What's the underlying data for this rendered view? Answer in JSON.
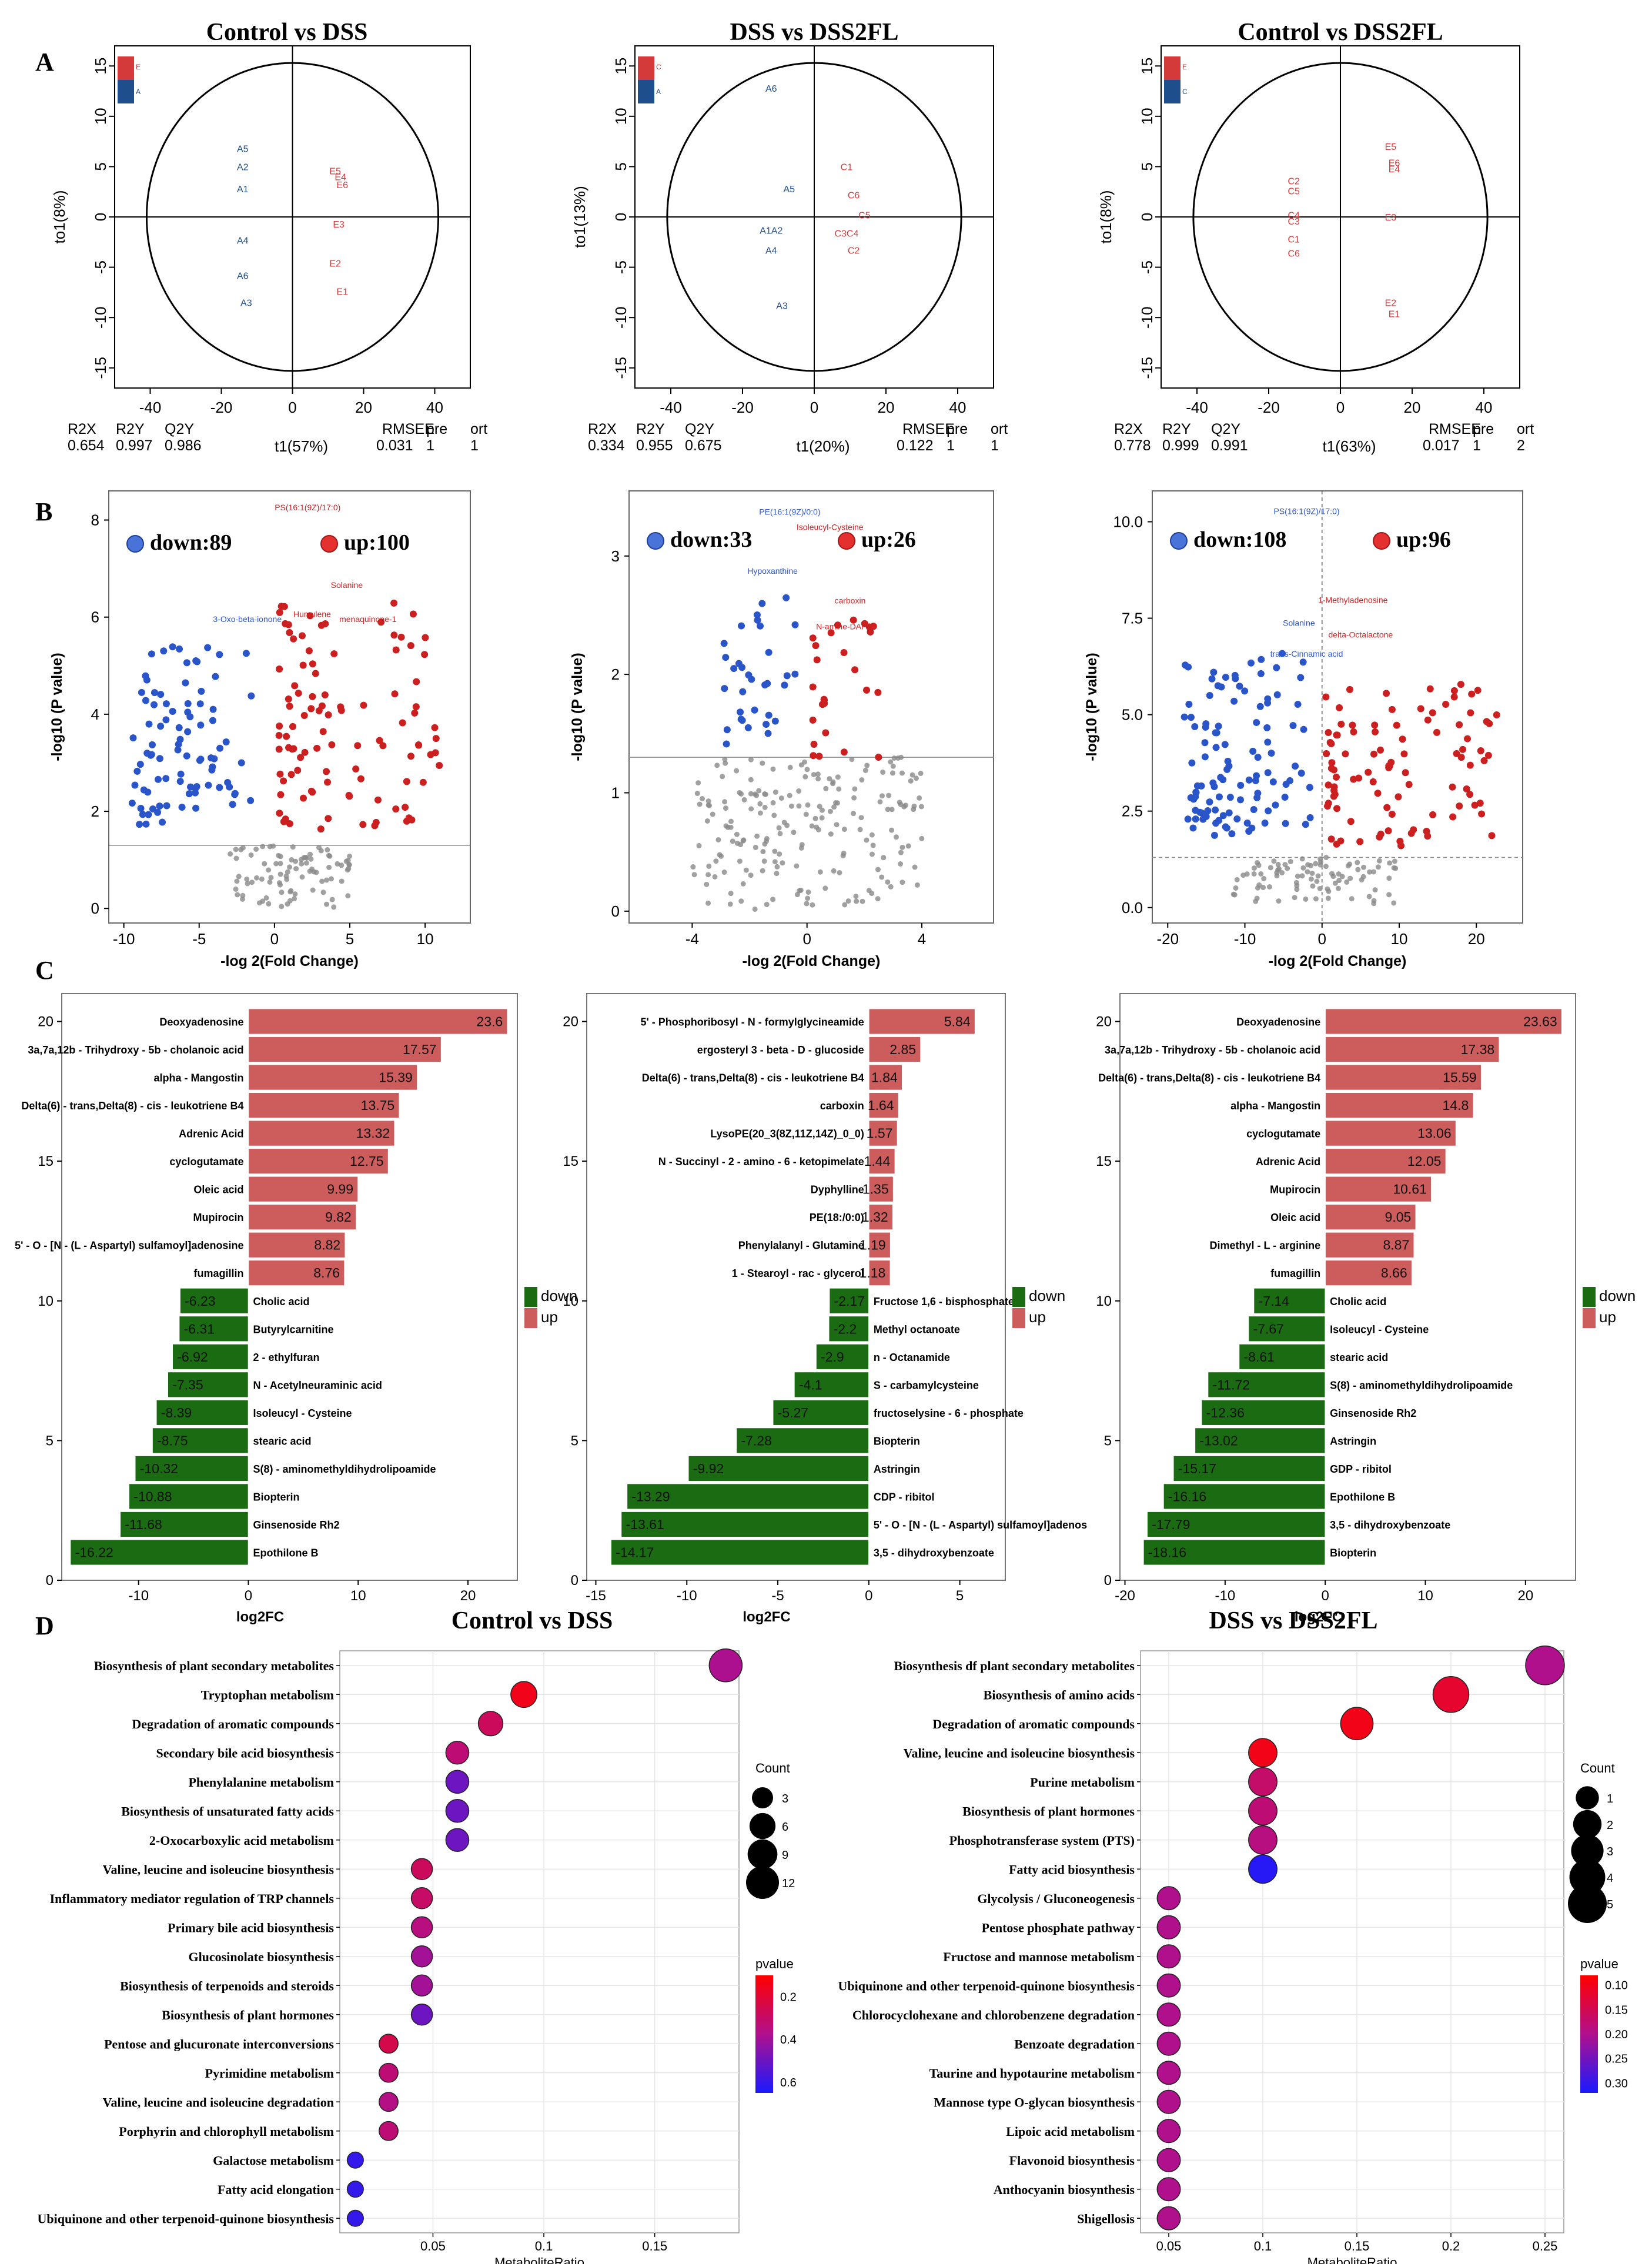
{
  "panel_labels": [
    "A",
    "B",
    "C",
    "D"
  ],
  "chart_data": [
    {
      "type": "scatter",
      "subtype": "opls-da",
      "panel": "A",
      "title": "Control vs DSS",
      "xlabel": "t1(57%)",
      "ylabel": "to1(8%)",
      "xlim": [
        -50,
        50
      ],
      "ylim": [
        -17,
        17
      ],
      "xticks": [
        -40,
        -20,
        0,
        20,
        40
      ],
      "yticks": [
        -15,
        -10,
        -5,
        0,
        5,
        10,
        15
      ],
      "points": [
        {
          "label": "A5",
          "x": -14,
          "y": 6.8,
          "group": "A"
        },
        {
          "label": "A2",
          "x": -14,
          "y": 5.0,
          "group": "A"
        },
        {
          "label": "A1",
          "x": -14,
          "y": 2.8,
          "group": "A"
        },
        {
          "label": "A4",
          "x": -14,
          "y": -2.3,
          "group": "A"
        },
        {
          "label": "A6",
          "x": -14,
          "y": -5.8,
          "group": "A"
        },
        {
          "label": "A3",
          "x": -13,
          "y": -8.5,
          "group": "A"
        },
        {
          "label": "E5",
          "x": 12,
          "y": 4.6,
          "group": "E"
        },
        {
          "label": "E4",
          "x": 13.5,
          "y": 4.0,
          "group": "E"
        },
        {
          "label": "E6",
          "x": 14,
          "y": 3.2,
          "group": "E"
        },
        {
          "label": "E3",
          "x": 13,
          "y": -0.7,
          "group": "E"
        },
        {
          "label": "E2",
          "x": 12,
          "y": -4.6,
          "group": "E"
        },
        {
          "label": "E1",
          "x": 14,
          "y": -7.4,
          "group": "E"
        }
      ],
      "legend": [
        "E",
        "A"
      ],
      "stats": {
        "headers": [
          "R2X",
          "R2Y",
          "Q2Y",
          "RMSEE",
          "pre",
          "ort"
        ],
        "values": [
          "0.654",
          "0.997",
          "0.986",
          "0.031",
          "1",
          "1"
        ]
      }
    },
    {
      "type": "scatter",
      "subtype": "opls-da",
      "panel": "A",
      "title": "DSS vs DSS2FL",
      "xlabel": "t1(20%)",
      "ylabel": "to1(13%)",
      "xlim": [
        -50,
        50
      ],
      "ylim": [
        -17,
        17
      ],
      "xticks": [
        -40,
        -20,
        0,
        20,
        40
      ],
      "yticks": [
        -15,
        -10,
        -5,
        0,
        5,
        10,
        15
      ],
      "points": [
        {
          "label": "A6",
          "x": -12,
          "y": 12.8,
          "group": "A"
        },
        {
          "label": "A5",
          "x": -7,
          "y": 2.8,
          "group": "A"
        },
        {
          "label": "A1A2",
          "x": -12,
          "y": -1.3,
          "group": "A"
        },
        {
          "label": "A4",
          "x": -12,
          "y": -3.3,
          "group": "A"
        },
        {
          "label": "A3",
          "x": -9,
          "y": -8.8,
          "group": "A"
        },
        {
          "label": "C1",
          "x": 9,
          "y": 5.0,
          "group": "C"
        },
        {
          "label": "C6",
          "x": 11,
          "y": 2.2,
          "group": "C"
        },
        {
          "label": "C5",
          "x": 14,
          "y": 0.2,
          "group": "C"
        },
        {
          "label": "C3C4",
          "x": 9,
          "y": -1.6,
          "group": "C"
        },
        {
          "label": "C2",
          "x": 11,
          "y": -3.3,
          "group": "C"
        }
      ],
      "legend": [
        "C",
        "A"
      ],
      "stats": {
        "headers": [
          "R2X",
          "R2Y",
          "Q2Y",
          "RMSEE",
          "pre",
          "ort"
        ],
        "values": [
          "0.334",
          "0.955",
          "0.675",
          "0.122",
          "1",
          "1"
        ]
      }
    },
    {
      "type": "scatter",
      "subtype": "opls-da",
      "panel": "A",
      "title": "Control vs DSS2FL",
      "xlabel": "t1(63%)",
      "ylabel": "to1(8%)",
      "xlim": [
        -50,
        50
      ],
      "ylim": [
        -17,
        17
      ],
      "xticks": [
        -40,
        -20,
        0,
        20,
        40
      ],
      "yticks": [
        -15,
        -10,
        -5,
        0,
        5,
        10,
        15
      ],
      "points": [
        {
          "label": "C2",
          "x": -13,
          "y": 3.6,
          "group": "C"
        },
        {
          "label": "C5",
          "x": -13,
          "y": 2.6,
          "group": "C"
        },
        {
          "label": "C4",
          "x": -13,
          "y": 0.2,
          "group": "C"
        },
        {
          "label": "C3",
          "x": -13,
          "y": -0.4,
          "group": "C"
        },
        {
          "label": "C1",
          "x": -13,
          "y": -2.2,
          "group": "C"
        },
        {
          "label": "C6",
          "x": -13,
          "y": -3.6,
          "group": "C"
        },
        {
          "label": "E5",
          "x": 14,
          "y": 7.0,
          "group": "E"
        },
        {
          "label": "E6",
          "x": 15,
          "y": 5.4,
          "group": "E"
        },
        {
          "label": "E4",
          "x": 15,
          "y": 4.8,
          "group": "E"
        },
        {
          "label": "E3",
          "x": 14,
          "y": 0.0,
          "group": "E"
        },
        {
          "label": "E2",
          "x": 14,
          "y": -8.5,
          "group": "E"
        },
        {
          "label": "E1",
          "x": 15,
          "y": -9.6,
          "group": "E"
        }
      ],
      "legend": [
        "E",
        "C"
      ],
      "stats": {
        "headers": [
          "R2X",
          "R2Y",
          "Q2Y",
          "RMSEE",
          "pre",
          "ort"
        ],
        "values": [
          "0.778",
          "0.999",
          "0.991",
          "0.017",
          "1",
          "2"
        ]
      }
    },
    {
      "type": "scatter",
      "subtype": "volcano",
      "panel": "B",
      "xlabel": "-log 2(Fold Change)",
      "ylabel": "-log10 (P value)",
      "xlim": [
        -11,
        13
      ],
      "ylim": [
        -0.3,
        8.6
      ],
      "xticks": [
        -10,
        -5,
        0,
        5,
        10
      ],
      "yticks": [
        0,
        2,
        4,
        6,
        8
      ],
      "threshold_y": 1.3,
      "threshold_x": null,
      "down_label": "down:89",
      "up_label": "up:100",
      "annotations": [
        {
          "text": "PS(16:1(9Z)/17:0)",
          "x": 2.2,
          "y": 8.2,
          "color": "up"
        },
        {
          "text": "Solanine",
          "x": 4.8,
          "y": 6.6,
          "color": "up"
        },
        {
          "text": "menaquinone-1",
          "x": 6.2,
          "y": 5.9,
          "color": "up"
        },
        {
          "text": "Humulene",
          "x": 2.5,
          "y": 6.0,
          "color": "up"
        },
        {
          "text": "3-Oxo-beta-ionone",
          "x": -1.8,
          "y": 5.9,
          "color": "down"
        }
      ],
      "counts": {
        "down": 89,
        "up": 100,
        "ns": 90
      }
    },
    {
      "type": "scatter",
      "subtype": "volcano",
      "panel": "B",
      "xlabel": "-log 2(Fold Change)",
      "ylabel": "-log10 (P value)",
      "xlim": [
        -6.2,
        6.5
      ],
      "ylim": [
        -0.1,
        3.55
      ],
      "xticks": [
        -4,
        0,
        4
      ],
      "yticks": [
        0,
        1,
        2,
        3
      ],
      "threshold_y": 1.3,
      "threshold_x": null,
      "down_label": "down:33",
      "up_label": "up:26",
      "annotations": [
        {
          "text": "PE(16:1(9Z)/0:0)",
          "x": -0.6,
          "y": 3.35,
          "color": "down"
        },
        {
          "text": "Isoleucyl-Cysteine",
          "x": 0.8,
          "y": 3.22,
          "color": "up"
        },
        {
          "text": "Hypoxanthine",
          "x": -1.2,
          "y": 2.85,
          "color": "down"
        },
        {
          "text": "carboxin",
          "x": 1.5,
          "y": 2.6,
          "color": "up"
        },
        {
          "text": "N-amine-DAP",
          "x": 1.2,
          "y": 2.38,
          "color": "up"
        }
      ],
      "counts": {
        "down": 33,
        "up": 26,
        "ns": 200
      }
    },
    {
      "type": "scatter",
      "subtype": "volcano",
      "panel": "B",
      "xlabel": "-log 2(Fold Change)",
      "ylabel": "-log10 (P value)",
      "xlim": [
        -22,
        26
      ],
      "ylim": [
        -0.4,
        10.8
      ],
      "xticks": [
        -20,
        -10,
        0,
        10,
        20
      ],
      "yticks": [
        0.0,
        2.5,
        5.0,
        7.5,
        10.0
      ],
      "threshold_y": 1.3,
      "threshold_x": 0,
      "down_label": "down:108",
      "up_label": "up:96",
      "annotations": [
        {
          "text": "PS(16:1(9Z)/17:0)",
          "x": -2,
          "y": 10.2,
          "color": "down"
        },
        {
          "text": "1-Methyladenosine",
          "x": 4,
          "y": 7.9,
          "color": "up"
        },
        {
          "text": "Solanine",
          "x": -3,
          "y": 7.3,
          "color": "down"
        },
        {
          "text": "delta-Octalactone",
          "x": 5,
          "y": 7.0,
          "color": "up"
        },
        {
          "text": "trans-Cinnamic acid",
          "x": -2,
          "y": 6.5,
          "color": "down"
        }
      ],
      "counts": {
        "down": 108,
        "up": 96,
        "ns": 90
      }
    },
    {
      "type": "bar",
      "orientation": "horizontal",
      "panel": "C",
      "xlabel": "log2FC",
      "xlim": [
        -17,
        24.5
      ],
      "ylim": [
        0,
        21
      ],
      "xticks": [
        -10,
        0,
        10,
        20
      ],
      "yticks": [
        0,
        5,
        10,
        15,
        20
      ],
      "legend": [
        "down",
        "up"
      ],
      "categories": [
        "Deoxyadenosine",
        "3a,7a,12b - Trihydroxy - 5b - cholanoic acid",
        "alpha - Mangostin",
        "Delta(6) - trans,Delta(8) - cis - leukotriene B4",
        "Adrenic Acid",
        "cyclogutamate",
        "Oleic acid",
        "Mupirocin",
        "5' - O - [N - (L - Aspartyl) sulfamoyl]adenosine",
        "fumagillin",
        "Cholic acid",
        "Butyrylcarnitine",
        "2 - ethylfuran",
        "N - Acetylneuraminic acid",
        "Isoleucyl - Cysteine",
        "stearic acid",
        "S(8) - aminomethyldihydrolipoamide",
        "Biopterin",
        "Ginsenoside Rh2",
        "Epothilone B"
      ],
      "values": [
        23.6,
        17.57,
        15.39,
        13.75,
        13.32,
        12.75,
        9.99,
        9.82,
        8.82,
        8.76,
        -6.23,
        -6.31,
        -6.92,
        -7.35,
        -8.39,
        -8.75,
        -10.32,
        -10.88,
        -11.68,
        -16.22
      ]
    },
    {
      "type": "bar",
      "orientation": "horizontal",
      "panel": "C",
      "xlabel": "log2FC",
      "xlim": [
        -15.5,
        7.5
      ],
      "ylim": [
        0,
        21
      ],
      "xticks": [
        -15,
        -10,
        -5,
        0,
        5
      ],
      "yticks": [
        0,
        5,
        10,
        15,
        20
      ],
      "legend": [
        "down",
        "up"
      ],
      "categories": [
        "5' - Phosphoribosyl - N - formylglycineamide",
        "ergosteryl 3 - beta - D - glucoside",
        "Delta(6) - trans,Delta(8) - cis - leukotriene B4",
        "carboxin",
        "LysoPE(20_3(8Z,11Z,14Z)_0_0)",
        "N - Succinyl - 2 - amino - 6 - ketopimelate",
        "Dyphylline",
        "PE(18:/0:0)",
        "Phenylalanyl - Glutamine",
        "1 - Stearoyl - rac - glycerol",
        "Fructose 1,6 - bisphosphate",
        "Methyl octanoate",
        "n - Octanamide",
        "S - carbamylcysteine",
        "fructoselysine - 6 - phosphate",
        "Biopterin",
        "Astringin",
        "CDP - ribitol",
        "5' - O - [N - (L - Aspartyl) sulfamoyl]adenos",
        "3,5 - dihydroxybenzoate"
      ],
      "values": [
        5.84,
        2.85,
        1.84,
        1.64,
        1.57,
        1.44,
        1.35,
        1.32,
        1.19,
        1.18,
        -2.17,
        -2.2,
        -2.9,
        -4.1,
        -5.27,
        -7.28,
        -9.92,
        -13.29,
        -13.61,
        -14.17
      ]
    },
    {
      "type": "bar",
      "orientation": "horizontal",
      "panel": "C",
      "xlabel": "log2FC",
      "xlim": [
        -20.5,
        25
      ],
      "ylim": [
        0,
        21
      ],
      "xticks": [
        -20,
        -10,
        0,
        10,
        20
      ],
      "yticks": [
        0,
        5,
        10,
        15,
        20
      ],
      "legend": [
        "down",
        "up"
      ],
      "categories": [
        "Deoxyadenosine",
        "3a,7a,12b - Trihydroxy - 5b - cholanoic acid",
        "Delta(6) - trans,Delta(8) - cis - leukotriene B4",
        "alpha - Mangostin",
        "cyclogutamate",
        "Adrenic Acid",
        "Mupirocin",
        "Oleic acid",
        "Dimethyl - L - arginine",
        "fumagillin",
        "Cholic acid",
        "Isoleucyl - Cysteine",
        "stearic acid",
        "S(8) - aminomethyldihydrolipoamide",
        "Ginsenoside Rh2",
        "Astringin",
        "GDP - ribitol",
        "Epothilone B",
        "3,5 - dihydroxybenzoate",
        "Biopterin"
      ],
      "values": [
        23.63,
        17.38,
        15.59,
        14.8,
        13.06,
        12.05,
        10.61,
        9.05,
        8.87,
        8.66,
        -7.14,
        -7.67,
        -8.61,
        -11.72,
        -12.36,
        -13.02,
        -15.17,
        -16.16,
        -17.79,
        -18.16
      ]
    },
    {
      "type": "scatter",
      "subtype": "bubble",
      "panel": "D",
      "title": "Control vs DSS",
      "xlabel": "MetaboliteRatio",
      "xlim": [
        0.008,
        0.188
      ],
      "xticks": [
        0.05,
        0.1,
        0.15
      ],
      "categories": [
        "Biosynthesis of plant secondary metabolites",
        "Tryptophan metabolism",
        "Degradation of aromatic compounds",
        "Secondary bile acid biosynthesis",
        "Phenylalanine metabolism",
        "Biosynthesis of unsaturated fatty acids",
        "2-Oxocarboxylic acid metabolism",
        "Valine, leucine and isoleucine biosynthesis",
        "Inflammatory mediator regulation of TRP channels",
        "Primary bile acid biosynthesis",
        "Glucosinolate biosynthesis",
        "Biosynthesis of terpenoids and steroids",
        "Biosynthesis of plant hormones",
        "Pentose and glucuronate interconversions",
        "Pyrimidine metabolism",
        "Valine, leucine and isoleucine degradation",
        "Porphyrin and chlorophyll metabolism",
        "Galactose metabolism",
        "Fatty acid elongation",
        "Ubiquinone and other terpenoid-quinone biosynthesis"
      ],
      "x": [
        0.182,
        0.091,
        0.076,
        0.061,
        0.061,
        0.061,
        0.061,
        0.045,
        0.045,
        0.045,
        0.045,
        0.045,
        0.045,
        0.03,
        0.03,
        0.03,
        0.03,
        0.015,
        0.015,
        0.015
      ],
      "count": [
        12,
        6,
        5,
        4,
        4,
        4,
        4,
        3,
        3,
        3,
        3,
        3,
        3,
        2,
        2,
        2,
        2,
        1,
        1,
        1
      ],
      "pvalue": [
        0.38,
        0.15,
        0.28,
        0.33,
        0.5,
        0.5,
        0.5,
        0.28,
        0.3,
        0.35,
        0.4,
        0.4,
        0.5,
        0.25,
        0.33,
        0.36,
        0.33,
        0.6,
        0.6,
        0.6
      ],
      "size_legend": {
        "title": "Count",
        "values": [
          3,
          6,
          9,
          12
        ]
      },
      "color_legend": {
        "title": "pvalue",
        "ticks": [
          0.2,
          0.4,
          0.6
        ],
        "low_color": "#ff0000",
        "high_color": "#1010ff"
      }
    },
    {
      "type": "scatter",
      "subtype": "bubble",
      "panel": "D",
      "title": "DSS vs DSS2FL",
      "xlabel": "MetaboliteRatio",
      "xlim": [
        0.035,
        0.26
      ],
      "xticks": [
        0.05,
        0.1,
        0.15,
        0.2,
        0.25
      ],
      "categories": [
        "Biosynthesis df plant secondary metabolites",
        "Biosynthesis of amino acids",
        "Degradation of aromatic compounds",
        "Valine, leucine and isoleucine biosynthesis",
        "Purine metabolism",
        "Biosynthesis of plant hormones",
        "Phosphotransferase system (PTS)",
        "Fatty acid biosynthesis",
        "Glycolysis / Gluconeogenesis",
        "Pentose phosphate pathway",
        "Fructose and mannose metabolism",
        "Ubiquinone and other terpenoid-quinone biosynthesis",
        "Chlorocyclohexane and chlorobenzene degradation",
        "Benzoate degradation",
        "Taurine and hypotaurine metabolism",
        "Mannose type O-glycan biosynthesis",
        "Lipoic acid metabolism",
        "Flavonoid biosynthesis",
        "Anthocyanin biosynthesis",
        "Shigellosis"
      ],
      "x": [
        0.25,
        0.2,
        0.15,
        0.1,
        0.1,
        0.1,
        0.1,
        0.1,
        0.05,
        0.05,
        0.05,
        0.05,
        0.05,
        0.05,
        0.05,
        0.05,
        0.05,
        0.05,
        0.05,
        0.05
      ],
      "count": [
        5,
        4,
        3,
        2,
        2,
        2,
        2,
        2,
        1,
        1,
        1,
        1,
        1,
        1,
        1,
        1,
        1,
        1,
        1,
        1
      ],
      "pvalue": [
        0.2,
        0.12,
        0.1,
        0.1,
        0.17,
        0.18,
        0.19,
        0.31,
        0.2,
        0.2,
        0.2,
        0.2,
        0.2,
        0.2,
        0.2,
        0.2,
        0.2,
        0.2,
        0.2,
        0.2
      ],
      "size_legend": {
        "title": "Count",
        "values": [
          1,
          2,
          3,
          4,
          5
        ]
      },
      "color_legend": {
        "title": "pvalue",
        "ticks": [
          0.1,
          0.15,
          0.2,
          0.25,
          0.3
        ],
        "low_color": "#ff0000",
        "high_color": "#1010ff"
      }
    }
  ],
  "colors": {
    "up": "#cc1f1f",
    "down": "#2a55c9",
    "ns": "#8a8a8a",
    "bar_up": "#cd5c5c",
    "bar_down": "#1a6b12",
    "ellipse": "#000000",
    "groupA": "#1f4e8c",
    "groupRed": "#d43a3a",
    "grid": "#e6e6e6"
  }
}
